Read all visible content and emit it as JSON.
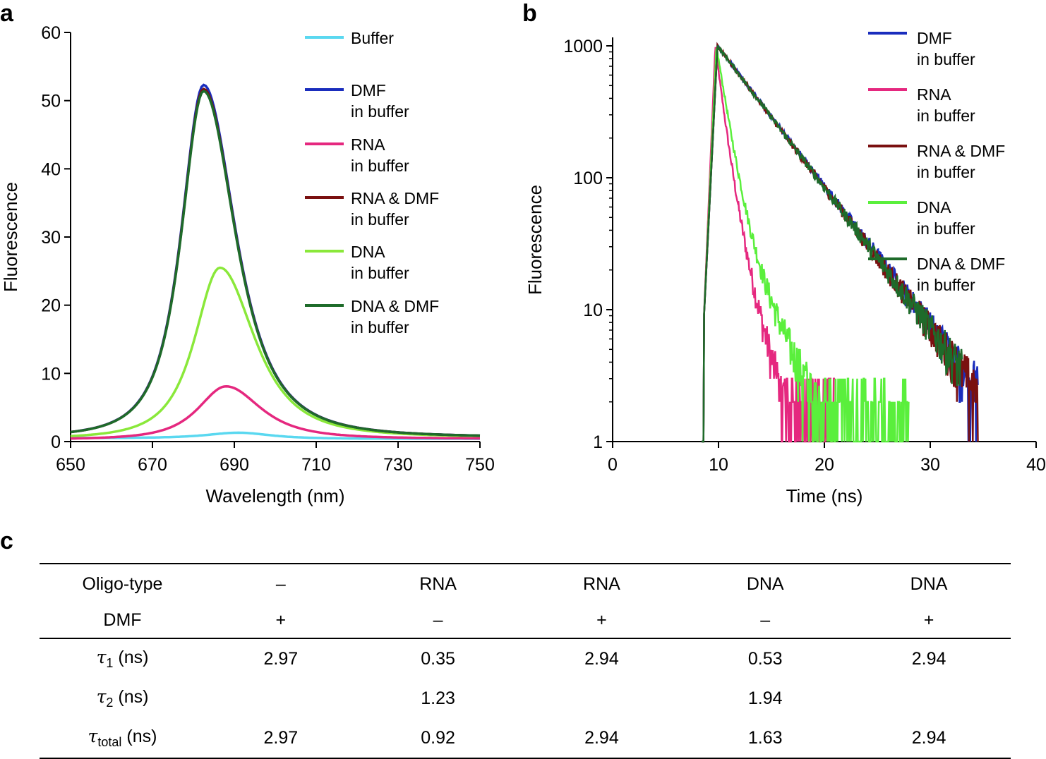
{
  "panels": {
    "a": "a",
    "b": "b",
    "c": "c"
  },
  "chart_data": [
    {
      "type": "line",
      "panel": "a",
      "xlabel": "Wavelength (nm)",
      "ylabel": "Fluorescence",
      "xlim": [
        650,
        750
      ],
      "ylim": [
        0,
        60
      ],
      "xticks": [
        650,
        670,
        690,
        710,
        730,
        750
      ],
      "yticks": [
        0,
        10,
        20,
        30,
        40,
        50,
        60
      ],
      "legend_position": "top-right",
      "series": [
        {
          "name": "Buffer",
          "legend": [
            "Buffer"
          ],
          "color": "#5ad8f0",
          "peak": 1.3,
          "peak_x": 691,
          "base_left": 0.5,
          "base_right": 0.4,
          "width_left": 12,
          "width_right": 12
        },
        {
          "name": "DMF in buffer",
          "legend": [
            "DMF",
            "in buffer"
          ],
          "color": "#1a2dbd",
          "peak": 52.3,
          "peak_x": 682.5,
          "base_left": 0.6,
          "base_right": 0.6,
          "width_left": 8.4,
          "width_right": 12
        },
        {
          "name": "RNA in buffer",
          "legend": [
            "RNA",
            "in buffer"
          ],
          "color": "#e5287f",
          "peak": 8.1,
          "peak_x": 688,
          "base_left": 0.3,
          "base_right": 0.4,
          "width_left": 10.5,
          "width_right": 13
        },
        {
          "name": "RNA & DMF in buffer",
          "legend": [
            "RNA & DMF",
            "in buffer"
          ],
          "color": "#7a1010",
          "peak": 51.7,
          "peak_x": 682.5,
          "base_left": 0.6,
          "base_right": 0.6,
          "width_left": 8.4,
          "width_right": 12
        },
        {
          "name": "DNA in buffer",
          "legend": [
            "DNA",
            "in buffer"
          ],
          "color": "#8ae83a",
          "peak": 25.5,
          "peak_x": 686.5,
          "base_left": 0.4,
          "base_right": 0.6,
          "width_left": 9.5,
          "width_right": 13
        },
        {
          "name": "DNA & DMF in buffer",
          "legend": [
            "DNA & DMF",
            "in buffer"
          ],
          "color": "#1e6b2a",
          "peak": 51.4,
          "peak_x": 682.5,
          "base_left": 0.6,
          "base_right": 0.6,
          "width_left": 8.4,
          "width_right": 12
        }
      ]
    },
    {
      "type": "line",
      "panel": "b",
      "scale_y": "log",
      "xlabel": "Time (ns)",
      "ylabel": "Fluorescence",
      "xlim": [
        0,
        40
      ],
      "ylim": [
        1,
        1000
      ],
      "xticks": [
        0,
        10,
        20,
        30,
        40
      ],
      "yticks": [
        1,
        10,
        100,
        1000
      ],
      "legend_position": "top-right",
      "series": [
        {
          "name": "DMF in buffer",
          "legend": [
            "DMF",
            "in buffer"
          ],
          "color": "#1a2dbd",
          "onset": 8.6,
          "peak_t": 9.9,
          "peak": 1000,
          "tau1": 2.97,
          "tau2": 2.97,
          "frac": 1.0,
          "end": 34.5
        },
        {
          "name": "RNA in buffer",
          "legend": [
            "RNA",
            "in buffer"
          ],
          "color": "#e5287f",
          "onset": 8.6,
          "peak_t": 9.7,
          "peak": 1000,
          "tau1": 0.35,
          "tau2": 1.23,
          "frac": 0.3,
          "end": 21
        },
        {
          "name": "RNA & DMF in buffer",
          "legend": [
            "RNA & DMF",
            "in buffer"
          ],
          "color": "#7a1010",
          "onset": 8.6,
          "peak_t": 9.9,
          "peak": 1000,
          "tau1": 2.94,
          "tau2": 2.94,
          "frac": 1.0,
          "end": 34.5
        },
        {
          "name": "DNA in buffer",
          "legend": [
            "DNA",
            "in buffer"
          ],
          "color": "#5aef3c",
          "onset": 8.6,
          "peak_t": 9.8,
          "peak": 1000,
          "tau1": 0.53,
          "tau2": 1.94,
          "frac": 0.45,
          "end": 28
        },
        {
          "name": "DNA & DMF in buffer",
          "legend": [
            "DNA & DMF",
            "in buffer"
          ],
          "color": "#1e6b2a",
          "onset": 8.6,
          "peak_t": 9.9,
          "peak": 1000,
          "tau1": 2.94,
          "tau2": 2.94,
          "frac": 1.0,
          "end": 33
        }
      ]
    },
    {
      "type": "table",
      "panel": "c",
      "header": {
        "oligo_label": "Oligo-type",
        "oligo": [
          "–",
          "RNA",
          "RNA",
          "DNA",
          "DNA"
        ],
        "dmf_label": "DMF",
        "dmf": [
          "+",
          "–",
          "+",
          "–",
          "+"
        ]
      },
      "rows": [
        {
          "symbol": "τ",
          "sub": "1",
          "unit": "(ns)",
          "values": [
            "2.97",
            "0.35",
            "2.94",
            "0.53",
            "2.94"
          ]
        },
        {
          "symbol": "τ",
          "sub": "2",
          "unit": "(ns)",
          "values": [
            "",
            "1.23",
            "",
            "1.94",
            ""
          ]
        },
        {
          "symbol": "τ",
          "sub": "total",
          "unit": "(ns)",
          "values": [
            "2.97",
            "0.92",
            "2.94",
            "1.63",
            "2.94"
          ]
        }
      ]
    }
  ]
}
